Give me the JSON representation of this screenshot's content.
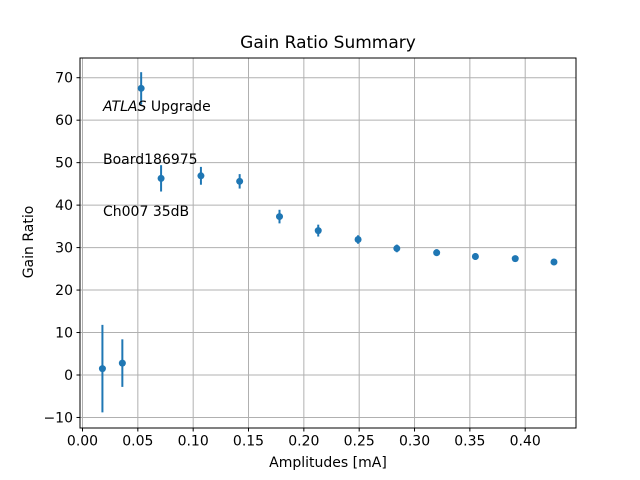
{
  "chart_data": {
    "type": "scatter",
    "title": "Gain Ratio Summary",
    "xlabel": "Amplitudes [mA]",
    "ylabel": "Gain Ratio",
    "annotation": {
      "line1_italic": "ATLAS",
      "line1_rest": " Upgrade",
      "line2": "Board186975",
      "line3": "Ch007 35dB"
    },
    "grid": true,
    "legend": "none",
    "marker_color": "#1f77b4",
    "grid_color": "#b0b0b0",
    "spine_color": "#000000",
    "xlim": [
      -0.00226,
      0.4459
    ],
    "ylim": [
      -12.48,
      74.64
    ],
    "xticks": [
      0.0,
      0.05,
      0.1,
      0.15,
      0.2,
      0.25,
      0.3,
      0.35,
      0.4
    ],
    "xtick_labels": [
      "0.00",
      "0.05",
      "0.10",
      "0.15",
      "0.20",
      "0.25",
      "0.30",
      "0.35",
      "0.40"
    ],
    "yticks": [
      -10,
      0,
      10,
      20,
      30,
      40,
      50,
      60,
      70
    ],
    "ytick_labels": [
      "−10",
      "0",
      "10",
      "20",
      "30",
      "40",
      "50",
      "60",
      "70"
    ],
    "series": [
      {
        "name": "gain-ratio-points",
        "x": [
          0.018,
          0.036,
          0.053,
          0.071,
          0.107,
          0.142,
          0.178,
          0.213,
          0.249,
          0.284,
          0.32,
          0.355,
          0.391,
          0.426
        ],
        "y": [
          1.5,
          2.8,
          67.5,
          46.3,
          46.9,
          45.6,
          37.3,
          34.0,
          31.9,
          29.8,
          28.8,
          27.9,
          27.4,
          26.6
        ],
        "yerr": [
          10.3,
          5.6,
          3.8,
          3.1,
          2.1,
          1.7,
          1.6,
          1.4,
          1.0,
          0.9,
          0.8,
          0.8,
          0.7,
          0.7
        ]
      }
    ]
  }
}
